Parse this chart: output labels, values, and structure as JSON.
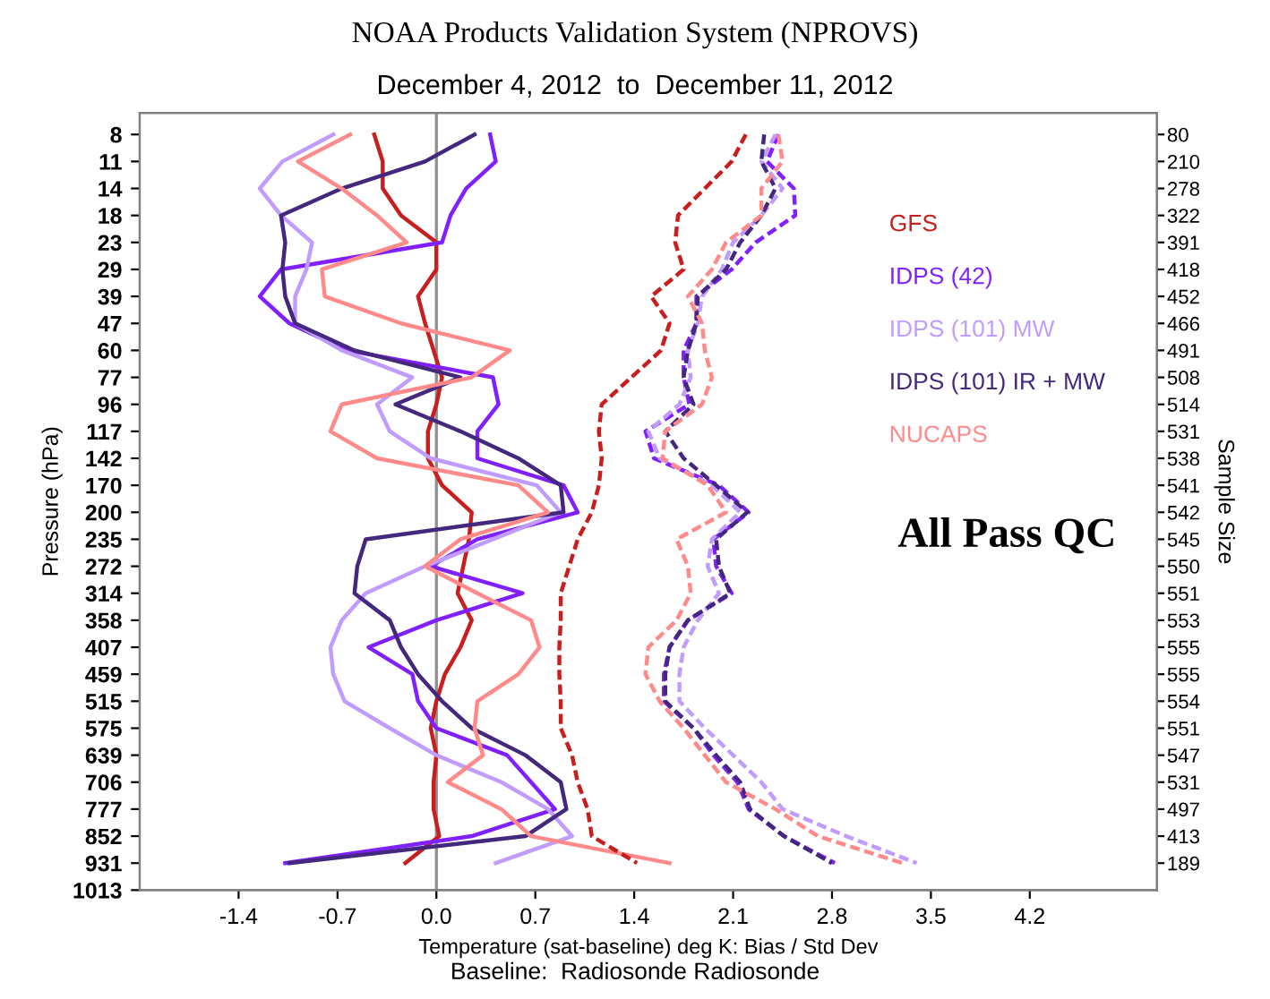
{
  "chart_data": {
    "type": "line",
    "orientation": "horizontal",
    "title": "NOAA Products Validation System (NPROVS)",
    "subtitle": "December 4, 2012  to  December 11, 2012",
    "xlabel": "Temperature (sat-baseline) deg K: Bias / Std Dev",
    "ylabel": "Pressure (hPa)",
    "y2label": "Sample Size",
    "annotations": [
      "All Pass QC",
      "Baseline:  Radiosonde Radiosonde"
    ],
    "xlim": [
      -2.1,
      5.1
    ],
    "xticks": [
      -1.4,
      -0.7,
      {
        "value": 0,
        "label": "0.0"
      },
      0.7,
      1.4,
      2.1,
      2.8,
      3.5,
      4.2
    ],
    "categories": [
      "8",
      "11",
      "14",
      "18",
      "23",
      "29",
      "39",
      "47",
      "60",
      "77",
      "96",
      "117",
      "142",
      "170",
      "200",
      "235",
      "272",
      "314",
      "358",
      "407",
      "459",
      "515",
      "575",
      "639",
      "706",
      "777",
      "852",
      "931",
      "1013"
    ],
    "y2_categories": [
      "80",
      "210",
      "278",
      "322",
      "391",
      "418",
      "452",
      "466",
      "491",
      "508",
      "514",
      "531",
      "538",
      "541",
      "542",
      "545",
      "550",
      "551",
      "553",
      "555",
      "555",
      "554",
      "551",
      "547",
      "531",
      "497",
      "413",
      "189",
      null
    ],
    "ref_lines": [
      {
        "axis": "x",
        "value": 0,
        "color": "#909090"
      }
    ],
    "legend": "right",
    "series": [
      {
        "name": "GFS",
        "color": "#c81e1e",
        "line_style": "solid",
        "values": [
          -0.44,
          -0.38,
          -0.38,
          -0.25,
          0.0,
          0.0,
          -0.13,
          -0.08,
          -0.02,
          0.04,
          0.0,
          -0.06,
          -0.06,
          0.04,
          0.25,
          0.23,
          0.19,
          0.15,
          0.25,
          0.17,
          0.06,
          0.0,
          -0.04,
          0.0,
          -0.02,
          -0.02,
          0.02,
          -0.22,
          null
        ]
      },
      {
        "name": "IDPS (42)",
        "color": "#8020ff",
        "line_style": "solid",
        "values": [
          0.38,
          0.42,
          0.21,
          0.1,
          0.04,
          -1.1,
          -1.25,
          -1.04,
          -0.63,
          0.4,
          0.44,
          0.29,
          0.29,
          0.9,
          1.0,
          0.29,
          -0.04,
          0.61,
          0.0,
          -0.48,
          -0.17,
          -0.13,
          0.0,
          0.5,
          0.67,
          0.84,
          0.25,
          -1.07,
          null
        ]
      },
      {
        "name": "IDPS (101) MW",
        "color": "#c09cff",
        "line_style": "solid",
        "values": [
          -0.73,
          -1.09,
          -1.25,
          -1.1,
          -0.88,
          -0.92,
          -1.0,
          -1.0,
          -0.67,
          -0.17,
          -0.42,
          -0.33,
          -0.04,
          0.71,
          0.88,
          0.4,
          -0.08,
          -0.5,
          -0.67,
          -0.75,
          -0.73,
          -0.65,
          -0.33,
          0.0,
          0.46,
          0.79,
          0.96,
          0.42,
          null
        ]
      },
      {
        "name": "IDPS (101) IR + MW",
        "color": "#44287e",
        "line_style": "solid",
        "values": [
          0.27,
          -0.08,
          -0.67,
          -1.1,
          -1.07,
          -1.09,
          -1.07,
          -1.0,
          -0.58,
          0.17,
          -0.29,
          0.17,
          0.58,
          0.88,
          0.9,
          -0.5,
          -0.56,
          -0.58,
          -0.33,
          -0.25,
          -0.13,
          0.04,
          0.25,
          0.63,
          0.88,
          0.92,
          0.63,
          -1.04,
          null
        ]
      },
      {
        "name": "NUCAPS",
        "color": "#ff8a8a",
        "line_style": "solid",
        "values": [
          -0.61,
          -0.98,
          -0.67,
          -0.42,
          -0.21,
          -0.81,
          -0.79,
          -0.25,
          0.52,
          0.25,
          -0.67,
          -0.75,
          -0.42,
          0.58,
          0.79,
          0.17,
          -0.08,
          0.29,
          0.67,
          0.73,
          0.58,
          0.29,
          0.27,
          0.33,
          0.08,
          0.46,
          0.67,
          1.65,
          null
        ]
      },
      {
        "color": "#c81e1e",
        "line_style": "dashed",
        "values": [
          2.19,
          2.09,
          1.9,
          1.71,
          1.69,
          1.75,
          1.52,
          1.65,
          1.59,
          1.38,
          1.17,
          1.15,
          1.17,
          1.15,
          1.1,
          1.0,
          0.94,
          0.88,
          0.88,
          0.87,
          0.87,
          0.88,
          0.88,
          0.96,
          1.0,
          1.07,
          1.1,
          1.42,
          null
        ]
      },
      {
        "color": "#8020ff",
        "line_style": "dashed",
        "values": [
          2.42,
          2.34,
          2.53,
          2.54,
          2.26,
          2.09,
          1.84,
          1.84,
          1.75,
          1.75,
          1.79,
          1.48,
          1.54,
          2.0,
          2.21,
          1.96,
          1.98,
          2.09,
          1.78,
          1.65,
          1.61,
          1.61,
          1.82,
          1.96,
          2.13,
          2.21,
          2.46,
          2.82,
          null
        ]
      },
      {
        "color": "#c09cff",
        "line_style": "dashed",
        "values": [
          2.4,
          2.3,
          2.45,
          2.3,
          2.1,
          2.02,
          1.88,
          1.85,
          1.78,
          1.8,
          1.72,
          1.5,
          1.58,
          1.95,
          2.15,
          1.95,
          1.92,
          2.0,
          1.85,
          1.75,
          1.72,
          1.72,
          1.9,
          2.1,
          2.3,
          2.45,
          2.9,
          3.4,
          null
        ]
      },
      {
        "color": "#44287e",
        "line_style": "dashed",
        "values": [
          2.32,
          2.3,
          2.4,
          2.3,
          2.15,
          2.05,
          1.85,
          1.84,
          1.78,
          1.75,
          1.82,
          1.62,
          1.75,
          1.98,
          2.2,
          1.98,
          2.0,
          2.08,
          1.78,
          1.65,
          1.62,
          1.62,
          1.82,
          1.98,
          2.15,
          2.22,
          2.46,
          2.8,
          null
        ]
      },
      {
        "color": "#ff8a8a",
        "line_style": "dashed",
        "values": [
          2.42,
          2.45,
          2.3,
          2.3,
          2.05,
          1.95,
          1.78,
          1.88,
          1.9,
          1.95,
          1.88,
          1.62,
          1.6,
          1.92,
          2.05,
          1.7,
          1.78,
          1.8,
          1.7,
          1.5,
          1.48,
          1.58,
          1.75,
          1.9,
          2.05,
          2.4,
          2.7,
          3.3,
          null
        ]
      }
    ]
  }
}
